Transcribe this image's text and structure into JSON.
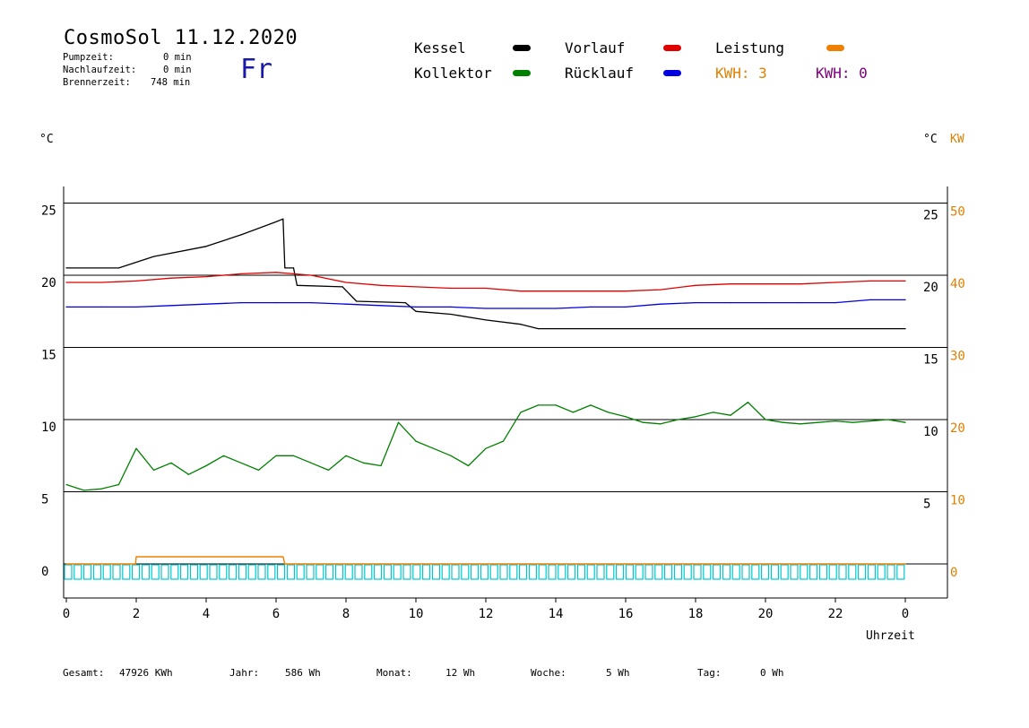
{
  "header": {
    "title": "CosmoSol 11.12.2020",
    "day": "Fr",
    "stats": [
      {
        "label": "Pumpzeit:",
        "value": "0 min"
      },
      {
        "label": "Nachlaufzeit:",
        "value": "0 min"
      },
      {
        "label": "Brennerzeit:",
        "value": "748 min"
      }
    ]
  },
  "legend": {
    "kessel": {
      "label": "Kessel",
      "color": "#000000"
    },
    "vorlauf": {
      "label": "Vorlauf",
      "color": "#e00000"
    },
    "leistung": {
      "label": "Leistung",
      "color": "#f08000"
    },
    "kollektor": {
      "label": "Kollektor",
      "color": "#008000"
    },
    "ruecklauf": {
      "label": "Rücklauf",
      "color": "#0000e0"
    },
    "kwh1": "KWH: 3",
    "kwh1_color": "#e08000",
    "kwh2": "KWH: 0",
    "kwh2_color": "#800080"
  },
  "axis_units": {
    "left": "°C",
    "right": "°C",
    "right_kw": "KW",
    "x": "Uhrzeit"
  },
  "footer": {
    "gesamt_label": "Gesamt:",
    "gesamt_value": "47926 KWh",
    "jahr_label": "Jahr:",
    "jahr_value": "586 Wh",
    "monat_label": "Monat:",
    "monat_value": "12 Wh",
    "woche_label": "Woche:",
    "woche_value": "5 Wh",
    "tag_label": "Tag:",
    "tag_value": "0 Wh"
  },
  "chart_data": {
    "type": "line",
    "xlabel": "Uhrzeit",
    "x_ticks": [
      "0",
      "2",
      "4",
      "6",
      "8",
      "10",
      "12",
      "14",
      "16",
      "18",
      "20",
      "22",
      "0"
    ],
    "xlim": [
      0,
      24
    ],
    "ylim_left": [
      -2,
      26
    ],
    "y_ticks_left": [
      0,
      5,
      10,
      15,
      20,
      25
    ],
    "y_ticks_right_temp": [
      5,
      10,
      15,
      20,
      25
    ],
    "y_ticks_right_kw": [
      0,
      10,
      20,
      30,
      40,
      50
    ],
    "grid_y": [
      0,
      5,
      10,
      15,
      20,
      25
    ],
    "series": [
      {
        "name": "Kessel",
        "color": "#000000",
        "points": [
          [
            0,
            20.5
          ],
          [
            0.1,
            20.5
          ],
          [
            1.5,
            20.5
          ],
          [
            2.5,
            21.3
          ],
          [
            4,
            22.0
          ],
          [
            5,
            22.8
          ],
          [
            6.0,
            23.7
          ],
          [
            6.2,
            23.9
          ],
          [
            6.25,
            20.5
          ],
          [
            6.5,
            20.5
          ],
          [
            6.6,
            19.3
          ],
          [
            7.9,
            19.2
          ],
          [
            8.3,
            18.2
          ],
          [
            9.7,
            18.1
          ],
          [
            10.0,
            17.5
          ],
          [
            11.0,
            17.3
          ],
          [
            12.0,
            16.9
          ],
          [
            13.0,
            16.6
          ],
          [
            13.5,
            16.3
          ],
          [
            20,
            16.3
          ],
          [
            24,
            16.3
          ]
        ]
      },
      {
        "name": "Vorlauf",
        "color": "#e00000",
        "points": [
          [
            0,
            19.5
          ],
          [
            1,
            19.5
          ],
          [
            2,
            19.6
          ],
          [
            3,
            19.8
          ],
          [
            4,
            19.9
          ],
          [
            5,
            20.1
          ],
          [
            6,
            20.2
          ],
          [
            6.5,
            20.1
          ],
          [
            7,
            20.0
          ],
          [
            8,
            19.5
          ],
          [
            9,
            19.3
          ],
          [
            10,
            19.2
          ],
          [
            11,
            19.1
          ],
          [
            12,
            19.1
          ],
          [
            13,
            18.9
          ],
          [
            14,
            18.9
          ],
          [
            15,
            18.9
          ],
          [
            16,
            18.9
          ],
          [
            17,
            19.0
          ],
          [
            18,
            19.3
          ],
          [
            19,
            19.4
          ],
          [
            20,
            19.4
          ],
          [
            21,
            19.4
          ],
          [
            22,
            19.5
          ],
          [
            23,
            19.6
          ],
          [
            24,
            19.6
          ]
        ]
      },
      {
        "name": "Rücklauf",
        "color": "#0000e0",
        "points": [
          [
            0,
            17.8
          ],
          [
            1,
            17.8
          ],
          [
            2,
            17.8
          ],
          [
            3,
            17.9
          ],
          [
            4,
            18.0
          ],
          [
            5,
            18.1
          ],
          [
            6,
            18.1
          ],
          [
            7,
            18.1
          ],
          [
            8,
            18.0
          ],
          [
            9,
            17.9
          ],
          [
            10,
            17.8
          ],
          [
            11,
            17.8
          ],
          [
            12,
            17.7
          ],
          [
            13,
            17.7
          ],
          [
            14,
            17.7
          ],
          [
            15,
            17.8
          ],
          [
            16,
            17.8
          ],
          [
            17,
            18.0
          ],
          [
            18,
            18.1
          ],
          [
            19,
            18.1
          ],
          [
            20,
            18.1
          ],
          [
            21,
            18.1
          ],
          [
            22,
            18.1
          ],
          [
            23,
            18.3
          ],
          [
            24,
            18.3
          ]
        ]
      },
      {
        "name": "Kollektor",
        "color": "#008000",
        "points": [
          [
            0,
            5.5
          ],
          [
            0.5,
            5.1
          ],
          [
            1.0,
            5.2
          ],
          [
            1.5,
            5.5
          ],
          [
            2.0,
            8.0
          ],
          [
            2.5,
            6.5
          ],
          [
            3.0,
            7.0
          ],
          [
            3.5,
            6.2
          ],
          [
            4.0,
            6.8
          ],
          [
            4.5,
            7.5
          ],
          [
            5.0,
            7.0
          ],
          [
            5.5,
            6.5
          ],
          [
            6.0,
            7.5
          ],
          [
            6.5,
            7.5
          ],
          [
            7.0,
            7.0
          ],
          [
            7.5,
            6.5
          ],
          [
            8.0,
            7.5
          ],
          [
            8.5,
            7.0
          ],
          [
            9.0,
            6.8
          ],
          [
            9.5,
            9.8
          ],
          [
            10.0,
            8.5
          ],
          [
            10.5,
            8.0
          ],
          [
            11.0,
            7.5
          ],
          [
            11.5,
            6.8
          ],
          [
            12.0,
            8.0
          ],
          [
            12.5,
            8.5
          ],
          [
            13.0,
            10.5
          ],
          [
            13.5,
            11.0
          ],
          [
            14.0,
            11.0
          ],
          [
            14.5,
            10.5
          ],
          [
            15.0,
            11.0
          ],
          [
            15.5,
            10.5
          ],
          [
            16.0,
            10.2
          ],
          [
            16.5,
            9.8
          ],
          [
            17.0,
            9.7
          ],
          [
            17.5,
            10.0
          ],
          [
            18.0,
            10.2
          ],
          [
            18.5,
            10.5
          ],
          [
            19.0,
            10.3
          ],
          [
            19.5,
            11.2
          ],
          [
            20.0,
            10.0
          ],
          [
            20.5,
            9.8
          ],
          [
            21.0,
            9.7
          ],
          [
            21.5,
            9.8
          ],
          [
            22.0,
            9.9
          ],
          [
            22.5,
            9.8
          ],
          [
            23.0,
            9.9
          ],
          [
            23.5,
            10.0
          ],
          [
            24.0,
            9.8
          ]
        ]
      },
      {
        "name": "Leistung",
        "color": "#f08000",
        "points": [
          [
            0,
            0
          ],
          [
            1.98,
            0
          ],
          [
            2.0,
            0.5
          ],
          [
            6.2,
            0.5
          ],
          [
            6.25,
            0
          ],
          [
            24,
            0
          ]
        ]
      }
    ]
  }
}
